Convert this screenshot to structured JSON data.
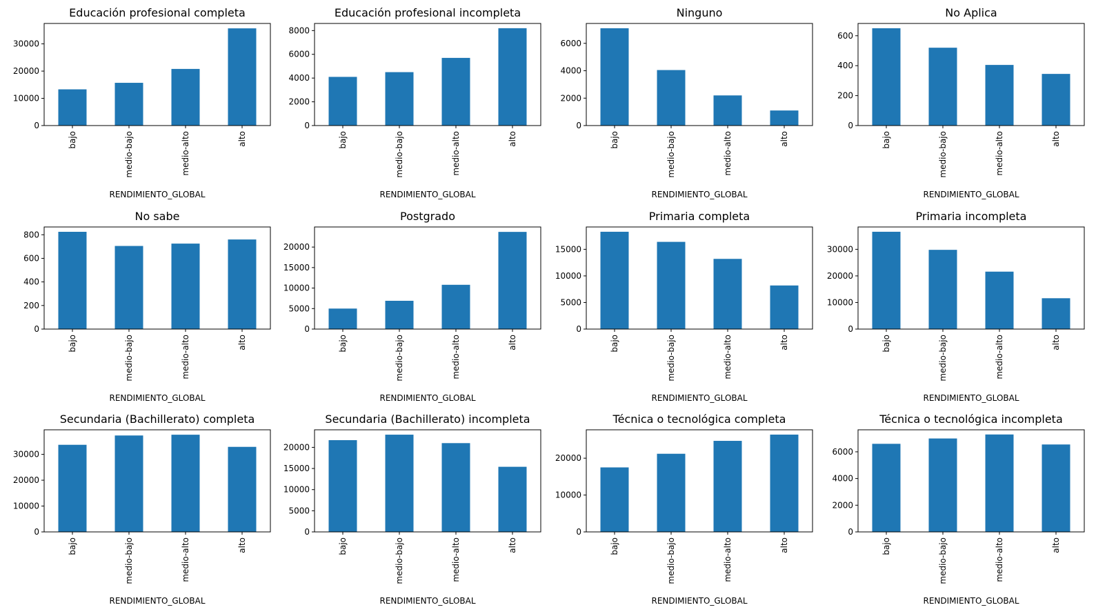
{
  "chart_data": [
    {
      "type": "bar",
      "title": "Educación profesional completa",
      "categories": [
        "bajo",
        "medio-bajo",
        "medio-alto",
        "alto"
      ],
      "values": [
        13300,
        15700,
        20800,
        35700
      ],
      "yticks": [
        0,
        10000,
        20000,
        30000
      ],
      "ylim": [
        0,
        37500
      ],
      "xlabel": "RENDIMIENTO_GLOBAL",
      "color": "#1f77b4"
    },
    {
      "type": "bar",
      "title": "Educación profesional incompleta",
      "categories": [
        "bajo",
        "medio-bajo",
        "medio-alto",
        "alto"
      ],
      "values": [
        4100,
        4500,
        5700,
        8200
      ],
      "yticks": [
        0,
        2000,
        4000,
        6000,
        8000
      ],
      "ylim": [
        0,
        8600
      ],
      "xlabel": "RENDIMIENTO_GLOBAL",
      "color": "#1f77b4"
    },
    {
      "type": "bar",
      "title": "Ninguno",
      "categories": [
        "bajo",
        "medio-bajo",
        "medio-alto",
        "alto"
      ],
      "values": [
        7100,
        4050,
        2200,
        1100
      ],
      "yticks": [
        0,
        2000,
        4000,
        6000
      ],
      "ylim": [
        0,
        7450
      ],
      "xlabel": "RENDIMIENTO_GLOBAL",
      "color": "#1f77b4"
    },
    {
      "type": "bar",
      "title": "No Aplica",
      "categories": [
        "bajo",
        "medio-bajo",
        "medio-alto",
        "alto"
      ],
      "values": [
        650,
        520,
        405,
        345
      ],
      "yticks": [
        0,
        200,
        400,
        600
      ],
      "ylim": [
        0,
        682
      ],
      "xlabel": "RENDIMIENTO_GLOBAL",
      "color": "#1f77b4"
    },
    {
      "type": "bar",
      "title": "No sabe",
      "categories": [
        "bajo",
        "medio-bajo",
        "medio-alto",
        "alto"
      ],
      "values": [
        825,
        705,
        725,
        760
      ],
      "yticks": [
        0,
        200,
        400,
        600,
        800
      ],
      "ylim": [
        0,
        866
      ],
      "xlabel": "RENDIMIENTO_GLOBAL",
      "color": "#1f77b4"
    },
    {
      "type": "bar",
      "title": "Postgrado",
      "categories": [
        "bajo",
        "medio-bajo",
        "medio-alto",
        "alto"
      ],
      "values": [
        5000,
        6900,
        10800,
        23700
      ],
      "yticks": [
        0,
        5000,
        10000,
        15000,
        20000
      ],
      "ylim": [
        0,
        24900
      ],
      "xlabel": "RENDIMIENTO_GLOBAL",
      "color": "#1f77b4"
    },
    {
      "type": "bar",
      "title": "Primaria completa",
      "categories": [
        "bajo",
        "medio-bajo",
        "medio-alto",
        "alto"
      ],
      "values": [
        18300,
        16400,
        13200,
        8200
      ],
      "yticks": [
        0,
        5000,
        10000,
        15000
      ],
      "ylim": [
        0,
        19200
      ],
      "xlabel": "RENDIMIENTO_GLOBAL",
      "color": "#1f77b4"
    },
    {
      "type": "bar",
      "title": "Primaria incompleta",
      "categories": [
        "bajo",
        "medio-bajo",
        "medio-alto",
        "alto"
      ],
      "values": [
        36600,
        29800,
        21600,
        11600
      ],
      "yticks": [
        0,
        10000,
        20000,
        30000
      ],
      "ylim": [
        0,
        38400
      ],
      "xlabel": "RENDIMIENTO_GLOBAL",
      "color": "#1f77b4"
    },
    {
      "type": "bar",
      "title": "Secundaria (Bachillerato) completa",
      "categories": [
        "bajo",
        "medio-bajo",
        "medio-alto",
        "alto"
      ],
      "values": [
        33700,
        37300,
        37600,
        32900
      ],
      "yticks": [
        0,
        10000,
        20000,
        30000
      ],
      "ylim": [
        0,
        39500
      ],
      "xlabel": "RENDIMIENTO_GLOBAL",
      "color": "#1f77b4"
    },
    {
      "type": "bar",
      "title": "Secundaria (Bachillerato) incompleta",
      "categories": [
        "bajo",
        "medio-bajo",
        "medio-alto",
        "alto"
      ],
      "values": [
        21700,
        23000,
        21000,
        15400
      ],
      "yticks": [
        0,
        5000,
        10000,
        15000,
        20000
      ],
      "ylim": [
        0,
        24150
      ],
      "xlabel": "RENDIMIENTO_GLOBAL",
      "color": "#1f77b4"
    },
    {
      "type": "bar",
      "title": "Técnica o tecnológica completa",
      "categories": [
        "bajo",
        "medio-bajo",
        "medio-alto",
        "alto"
      ],
      "values": [
        17500,
        21200,
        24700,
        26400
      ],
      "yticks": [
        0,
        10000,
        20000
      ],
      "ylim": [
        0,
        27700
      ],
      "xlabel": "RENDIMIENTO_GLOBAL",
      "color": "#1f77b4"
    },
    {
      "type": "bar",
      "title": "Técnica o tecnológica incompleta",
      "categories": [
        "bajo",
        "medio-bajo",
        "medio-alto",
        "alto"
      ],
      "values": [
        6600,
        7000,
        7300,
        6550
      ],
      "yticks": [
        0,
        2000,
        4000,
        6000
      ],
      "ylim": [
        0,
        7650
      ],
      "xlabel": "RENDIMIENTO_GLOBAL",
      "color": "#1f77b4"
    }
  ]
}
